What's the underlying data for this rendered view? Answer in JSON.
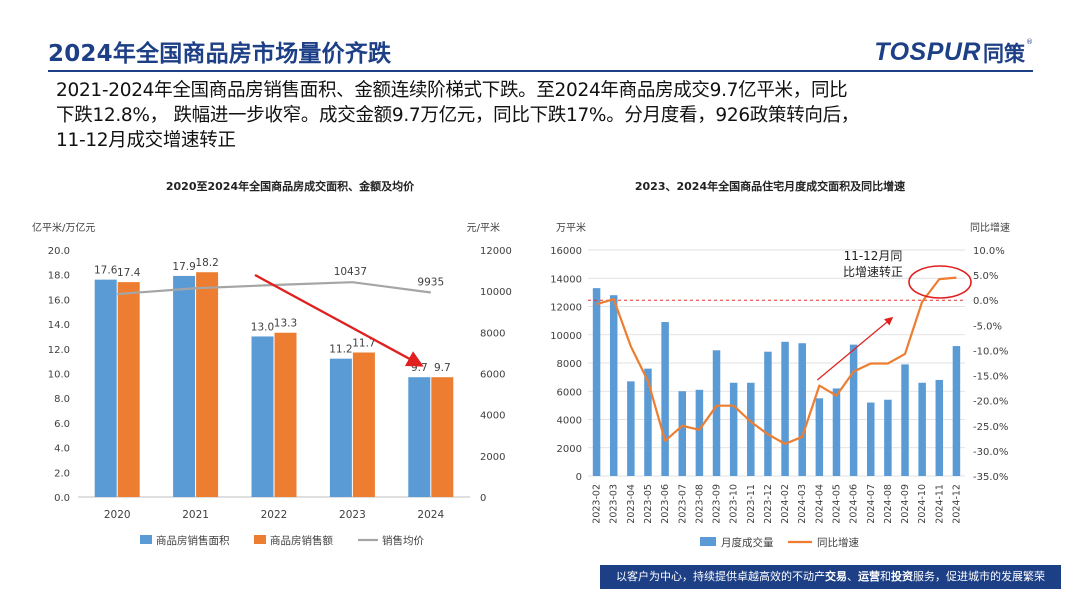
{
  "header": {
    "title": "2024年全国商品房市场量价齐跌",
    "brand_latin": "TOSPUR",
    "brand_cjk": "同策",
    "brand_reg": "®"
  },
  "summary": {
    "line1": "2021-2024年全国商品房销售面积、金额连续阶梯式下跌。至2024年商品房成交9.7亿平米，同比",
    "line2": "下跌12.8%， 跌幅进一步收窄。成交金额9.7万亿元，同比下跌17%。分月度看，926政策转向后，",
    "line3": "11-12月成交增速转正"
  },
  "footer": {
    "text_a": "以客户为中心，持续提供卓越高效的不动产",
    "bold_a": "交易",
    "sep_a": "、",
    "bold_b": "运营",
    "sep_b": "和",
    "bold_c": "投资",
    "text_b": "服务，促进城市的发展繁荣"
  },
  "colors": {
    "brand_navy": "#1d3f86",
    "bar_blue": "#5b9bd5",
    "bar_orange": "#ed7d31",
    "line_gray": "#a5a5a5",
    "arrow_red": "#e01f1f",
    "dashed_red": "#e0302a",
    "grid": "#d9d9d9"
  },
  "chart_data": [
    {
      "type": "bar",
      "title": "2020至2024年全国商品房成交面积、金额及均价",
      "ylabel": "亿平米/万亿元",
      "y2label": "元/平米",
      "ylim": [
        0,
        20
      ],
      "y2lim": [
        0,
        12000
      ],
      "yticks": [
        "0.0",
        "2.0",
        "4.0",
        "6.0",
        "8.0",
        "10.0",
        "12.0",
        "14.0",
        "16.0",
        "18.0",
        "20.0"
      ],
      "y2ticks": [
        "0",
        "2000",
        "4000",
        "6000",
        "8000",
        "10000",
        "12000"
      ],
      "categories": [
        "2020",
        "2021",
        "2022",
        "2023",
        "2024"
      ],
      "series": [
        {
          "name": "商品房销售面积",
          "type": "bar",
          "values": [
            17.6,
            17.9,
            13.0,
            11.2,
            9.7
          ],
          "labels": [
            "17.6",
            "17.9",
            "13.0",
            "11.2",
            "9.7"
          ]
        },
        {
          "name": "商品房销售额",
          "type": "bar",
          "values": [
            17.4,
            18.2,
            13.3,
            11.7,
            9.7
          ],
          "labels": [
            "17.4",
            "18.2",
            "13.3",
            "11.7",
            "9.7"
          ]
        },
        {
          "name": "销售均价",
          "type": "line",
          "axis": "right",
          "values": [
            9860,
            10140,
            10300,
            10437,
            9935
          ],
          "labels": [
            "",
            "",
            "",
            "10437",
            "9935"
          ]
        }
      ],
      "annotations": [
        {
          "type": "arrow",
          "note": "downward trend",
          "from_category": "2022",
          "to_category": "2024"
        }
      ],
      "legend": "bottom",
      "grid": false
    },
    {
      "type": "bar",
      "title": "2023、2024年全国商品住宅月度成交面积及同比增速",
      "ylabel": "万平米",
      "y2label": "同比增速",
      "ylim": [
        0,
        16000
      ],
      "y2lim": [
        -35,
        10
      ],
      "yticks": [
        "0",
        "2000",
        "4000",
        "6000",
        "8000",
        "10000",
        "12000",
        "14000",
        "16000"
      ],
      "y2ticks": [
        "-35.0%",
        "-30.0%",
        "-25.0%",
        "-20.0%",
        "-15.0%",
        "-10.0%",
        "-5.0%",
        "0.0%",
        "5.0%",
        "10.0%"
      ],
      "categories": [
        "2023-02",
        "2023-03",
        "2023-04",
        "2023-05",
        "2023-06",
        "2023-07",
        "2023-08",
        "2023-09",
        "2023-10",
        "2023-11",
        "2023-12",
        "2024-02",
        "2024-03",
        "2024-04",
        "2024-05",
        "2024-06",
        "2024-07",
        "2024-08",
        "2024-09",
        "2024-10",
        "2024-11",
        "2024-12"
      ],
      "series": [
        {
          "name": "月度成交量",
          "type": "bar",
          "values": [
            13300,
            12800,
            6700,
            7600,
            10900,
            6000,
            6100,
            8900,
            6600,
            6600,
            8800,
            9500,
            9400,
            5500,
            6200,
            9300,
            5200,
            5400,
            7900,
            6600,
            6800,
            9200
          ]
        },
        {
          "name": "同比增速",
          "type": "line",
          "axis": "right",
          "values": [
            -0.8,
            0.2,
            -9.2,
            -16.1,
            -28.0,
            -25.0,
            -25.8,
            -21.0,
            -21.0,
            -24.2,
            -26.7,
            -28.6,
            -27.2,
            -17.0,
            -19.0,
            -14.2,
            -12.6,
            -12.6,
            -10.7,
            -0.3,
            4.2,
            4.5
          ]
        }
      ],
      "annotations": [
        {
          "type": "text",
          "text": "11-12月同\n比增速转正"
        },
        {
          "type": "dashed-line",
          "y2": 0
        },
        {
          "type": "arrow",
          "note": "upward trend",
          "from_category": "2024-04",
          "to_category": "2024-08"
        },
        {
          "type": "ellipse",
          "around_categories": [
            "2024-11",
            "2024-12"
          ]
        }
      ],
      "legend": "bottom",
      "grid": true
    }
  ]
}
